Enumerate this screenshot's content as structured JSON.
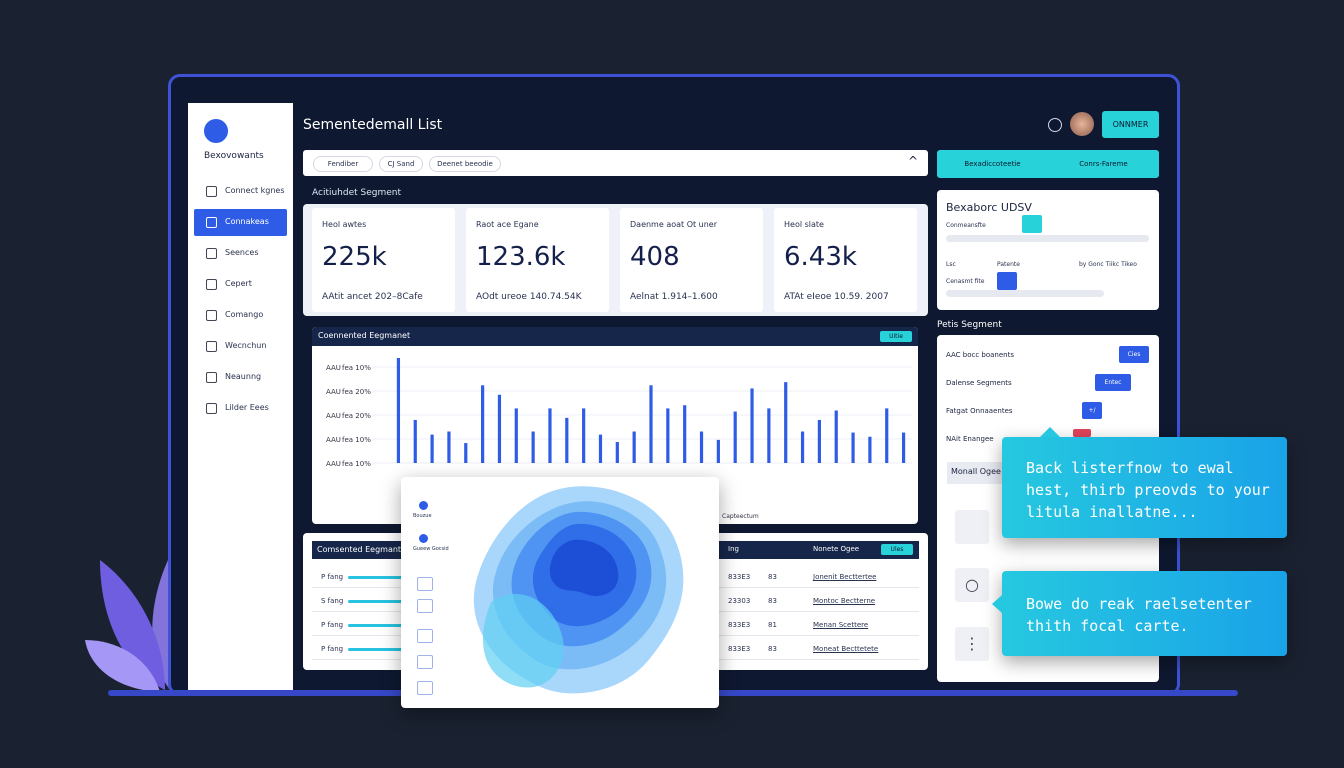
{
  "header": {
    "title": "Sementedemall List",
    "button": "ONNMER"
  },
  "sidebar": {
    "brand": "Bexovowants",
    "items": [
      "Connect kgnes",
      "Connakeas",
      "Seences",
      "Cepert",
      "Comango",
      "Wecnchun",
      "Neaunng",
      "Lilder Eees"
    ],
    "active": 1
  },
  "filters": [
    "Fendiber",
    "CJ Sand",
    "Deenet beeodie"
  ],
  "tabs": [
    "Bexadiccoteetie",
    "Conrs-Fareme"
  ],
  "section_label": "Acitiuhdet Segment",
  "kpis": [
    {
      "label": "Heol awtes",
      "value": "225k",
      "sub": "AAtit ancet 202–8Cafe"
    },
    {
      "label": "Raot ace Egane",
      "value": "123.6k",
      "sub": "AOdt ureoe 140.74.54K"
    },
    {
      "label": "Daenme aoat Ot uner",
      "value": "408",
      "sub": "Aelnat 1.914–1.600"
    },
    {
      "label": "Heol slate",
      "value": "6.43k",
      "sub": "ATAt eIeoe 10.59. 2007"
    }
  ],
  "chart": {
    "title": "Coennented Eegmanet",
    "button": "Uitie",
    "footer": "Capteectum",
    "row_labels": [
      "fea 10%",
      "fea 20%",
      "fea 20%",
      "fea 10%",
      "fea 10%"
    ],
    "row_prefix": "AAU",
    "ylim": [
      0,
      100
    ],
    "color": "#2f5ce6",
    "values": [
      100,
      41,
      27,
      30,
      19,
      74,
      65,
      52,
      30,
      52,
      43,
      52,
      27,
      20,
      30,
      74,
      52,
      55,
      30,
      22,
      49,
      71,
      52,
      77,
      30,
      41,
      50,
      29,
      25,
      52,
      29
    ]
  },
  "table": {
    "title": "Comsented Eegmant",
    "button": "Ules",
    "headers": [
      "Ing",
      "Nonete Ogee"
    ],
    "rows": [
      [
        "P fang",
        "833E3",
        "83",
        "Jonenit Becttertee"
      ],
      [
        "S fang",
        "23303",
        "83",
        "Montoc Bectterne"
      ],
      [
        "P fang",
        "833E3",
        "81",
        "Menan Scettere"
      ],
      [
        "P fang",
        "833E3",
        "83",
        "Moneat Becttetete"
      ]
    ]
  },
  "overlay": {
    "icons": [
      "Bouzue",
      "Gueew Gocsid"
    ]
  },
  "right": {
    "title": "Bexaborc UDSV",
    "fields": [
      "Conmeansfte",
      "Lsc",
      "Patente",
      "by Gonc Tiikc Tikeo",
      "Cenasmt fite"
    ],
    "section": "Petis Segment",
    "toggles": [
      {
        "label": "AAC bocc boanents",
        "button": "Cies"
      },
      {
        "label": "Dalense Segments",
        "button": "Entec"
      },
      {
        "label": "Fatgat Onnaaentes",
        "button": "+/"
      },
      {
        "label": "NAit Enangee",
        "button": ""
      }
    ],
    "group": "Monall Ogee"
  },
  "tooltips": [
    "Back listerfnow to ewal hest, thirb preovds to your litula inallatne...",
    "Bowe do reak raelsetenter thith focal carte."
  ]
}
